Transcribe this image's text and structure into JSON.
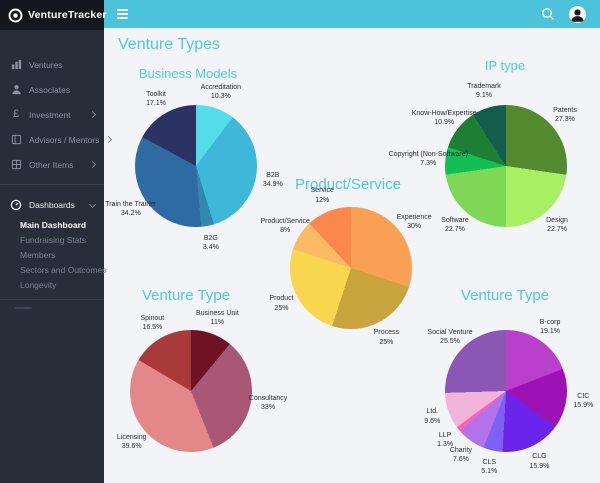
{
  "app": {
    "name": "VentureTracker"
  },
  "theme": {
    "accent": "#4cc3da",
    "title_color": "#4ec9e0",
    "sidebar_bg": "#272e39",
    "logo_bg": "#14171d",
    "main_bg": "#f2f4f8"
  },
  "header": {
    "icons": [
      "menu-icon",
      "search-icon",
      "user-avatar-icon"
    ]
  },
  "sidebar": {
    "logo_text": "VentureTracker",
    "items": [
      {
        "label": "Ventures",
        "icon": "bar-chart-icon",
        "has_chevron": false
      },
      {
        "label": "Associates",
        "icon": "person-icon",
        "has_chevron": false
      },
      {
        "label": "Investment",
        "icon": "pound-icon",
        "has_chevron": true
      },
      {
        "label": "Advisors / Mentors",
        "icon": "book-icon",
        "has_chevron": true
      },
      {
        "label": "Other Items",
        "icon": "grid-icon",
        "has_chevron": true
      }
    ],
    "dashboards": {
      "label": "Dashboards",
      "icon": "gauge-icon",
      "items": [
        "Main Dashboard",
        "Fundraising Stats",
        "Members",
        "Sectors and Outcomes",
        "Longevity"
      ],
      "active": "Main Dashboard"
    }
  },
  "page": {
    "title": "Venture Types"
  },
  "chart_data": [
    {
      "type": "pie",
      "title": "Business Models",
      "legend_position": "labels-around",
      "slices": [
        {
          "label": "Accreditation",
          "value": 10.3,
          "pct_text": "10.3%",
          "color": "#55dce9"
        },
        {
          "label": "B2B",
          "value": 34.9,
          "pct_text": "34.9%",
          "color": "#3eb7d9"
        },
        {
          "label": "B2G",
          "value": 3.4,
          "pct_text": "3.4%",
          "color": "#3287b5"
        },
        {
          "label": "Train the Trainer",
          "value": 34.2,
          "pct_text": "34.2%",
          "color": "#2e6ba2"
        },
        {
          "label": "Toolkit",
          "value": 17.1,
          "pct_text": "17.1%",
          "color": "#2c3263"
        }
      ]
    },
    {
      "type": "pie",
      "title": "IP type",
      "legend_position": "labels-around",
      "slices": [
        {
          "label": "Patents",
          "value": 27.3,
          "pct_text": "27.3%",
          "color": "#548a2e"
        },
        {
          "label": "Design",
          "value": 22.7,
          "pct_text": "22.7%",
          "color": "#a9ef63"
        },
        {
          "label": "Software",
          "value": 22.7,
          "pct_text": "22.7%",
          "color": "#7fd855"
        },
        {
          "label": "Copyright (Non-Software)",
          "value": 7.3,
          "pct_text": "7.3%",
          "color": "#12bf55"
        },
        {
          "label": "Know-How/Expertise",
          "value": 10.9,
          "pct_text": "10.9%",
          "color": "#1e7e34"
        },
        {
          "label": "Trademark",
          "value": 9.1,
          "pct_text": "9.1%",
          "color": "#145c4c"
        }
      ]
    },
    {
      "type": "pie",
      "title": "Product/Service",
      "legend_position": "labels-around",
      "slices": [
        {
          "label": "Experience",
          "value": 30,
          "pct_text": "30%",
          "color": "#faa055"
        },
        {
          "label": "Process",
          "value": 25,
          "pct_text": "25%",
          "color": "#c8a33e"
        },
        {
          "label": "Product",
          "value": 25,
          "pct_text": "25%",
          "color": "#f9d650"
        },
        {
          "label": "Product/Service",
          "value": 8,
          "pct_text": "8%",
          "color": "#fcba64"
        },
        {
          "label": "Service",
          "value": 12,
          "pct_text": "12%",
          "color": "#f9884a"
        }
      ]
    },
    {
      "type": "pie",
      "title": "Venture Type",
      "legend_position": "labels-around",
      "slices": [
        {
          "label": "Business Unit",
          "value": 11,
          "pct_text": "11%",
          "color": "#6f1225"
        },
        {
          "label": "Consultancy",
          "value": 33,
          "pct_text": "33%",
          "color": "#a85874"
        },
        {
          "label": "Licensing",
          "value": 39.6,
          "pct_text": "39.6%",
          "color": "#e28889"
        },
        {
          "label": "Spinout",
          "value": 16.5,
          "pct_text": "16.5%",
          "color": "#a83a3a"
        }
      ]
    },
    {
      "type": "pie",
      "title": "Venture Type",
      "legend_position": "labels-around",
      "slices": [
        {
          "label": "B-corp",
          "value": 19.1,
          "pct_text": "19.1%",
          "color": "#ba3fcb"
        },
        {
          "label": "CIC",
          "value": 15.9,
          "pct_text": "15.9%",
          "color": "#9d12b4"
        },
        {
          "label": "CLG",
          "value": 15.9,
          "pct_text": "15.9%",
          "color": "#6b24ea"
        },
        {
          "label": "CLS",
          "value": 5.1,
          "pct_text": "5.1%",
          "color": "#7e60f2"
        },
        {
          "label": "Charity",
          "value": 7.6,
          "pct_text": "7.6%",
          "color": "#b272e9"
        },
        {
          "label": "LLP",
          "value": 1.3,
          "pct_text": "1.3%",
          "color": "#fc61b4"
        },
        {
          "label": "Ltd.",
          "value": 9.6,
          "pct_text": "9.6%",
          "color": "#f0b3da"
        },
        {
          "label": "Social Venture",
          "value": 25.5,
          "pct_text": "25.5%",
          "color": "#8b57b4"
        }
      ]
    }
  ]
}
